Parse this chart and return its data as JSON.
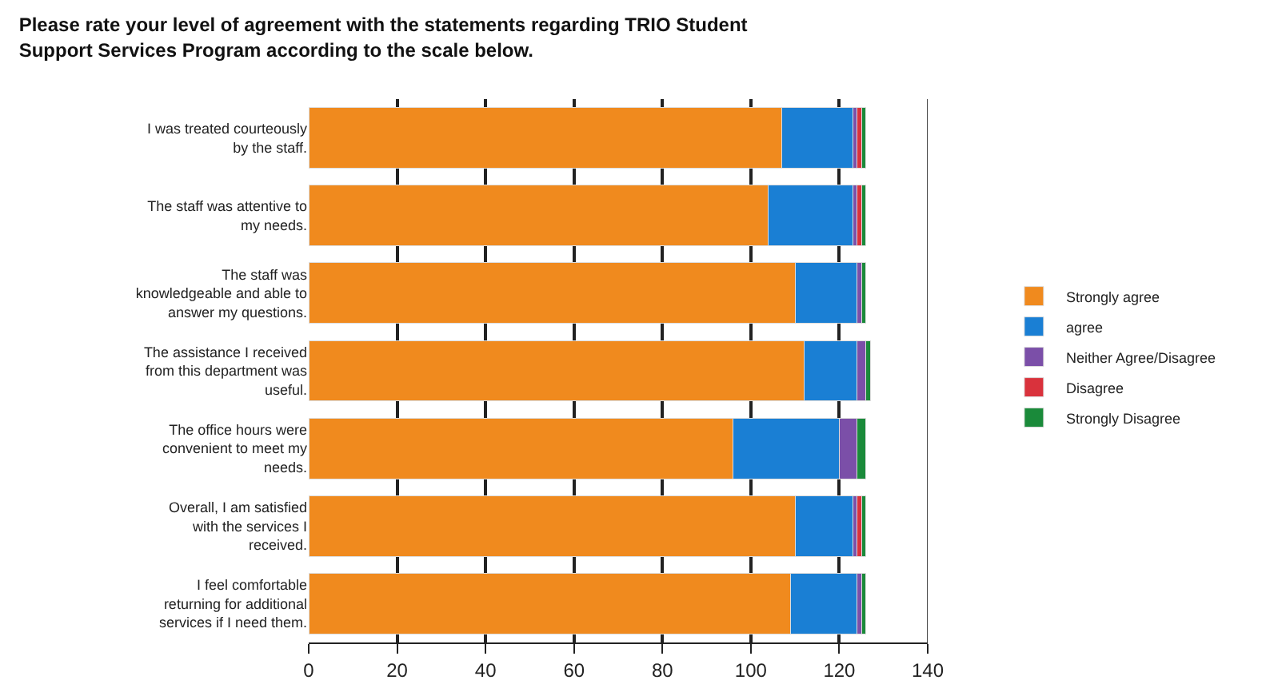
{
  "chart_data": {
    "type": "bar",
    "orientation": "horizontal",
    "stacked": true,
    "title": "Please rate your level of agreement with the statements regarding TRIO Student Support Services Program according to the scale below.",
    "categories": [
      "I was treated courteously by the staff.",
      "The staff was attentive to my needs.",
      "The staff was knowledgeable and able to answer my questions.",
      "The assistance I received from this department was useful.",
      "The office hours were convenient to meet my needs.",
      "Overall, I am satisfied with the services I received.",
      "I feel comfortable returning for additional services if I need them."
    ],
    "series": [
      {
        "name": "Strongly agree",
        "color": "#f08a1e",
        "values": [
          107,
          104,
          110,
          112,
          96,
          110,
          109
        ]
      },
      {
        "name": "agree",
        "color": "#1a7fd4",
        "values": [
          16,
          19,
          14,
          12,
          24,
          13,
          15
        ]
      },
      {
        "name": "Neither Agree/Disagree",
        "color": "#7b4fa8",
        "values": [
          1,
          1,
          1,
          2,
          4,
          1,
          1
        ]
      },
      {
        "name": "Disagree",
        "color": "#d9323c",
        "values": [
          1,
          1,
          0,
          0,
          0,
          1,
          0
        ]
      },
      {
        "name": "Strongly Disagree",
        "color": "#1a8a3a",
        "values": [
          1,
          1,
          1,
          1,
          2,
          1,
          1
        ]
      }
    ],
    "xlim": [
      0,
      140
    ],
    "xticks": [
      0,
      20,
      40,
      60,
      80,
      100,
      120,
      140
    ],
    "grid": "x",
    "legend": "right"
  }
}
